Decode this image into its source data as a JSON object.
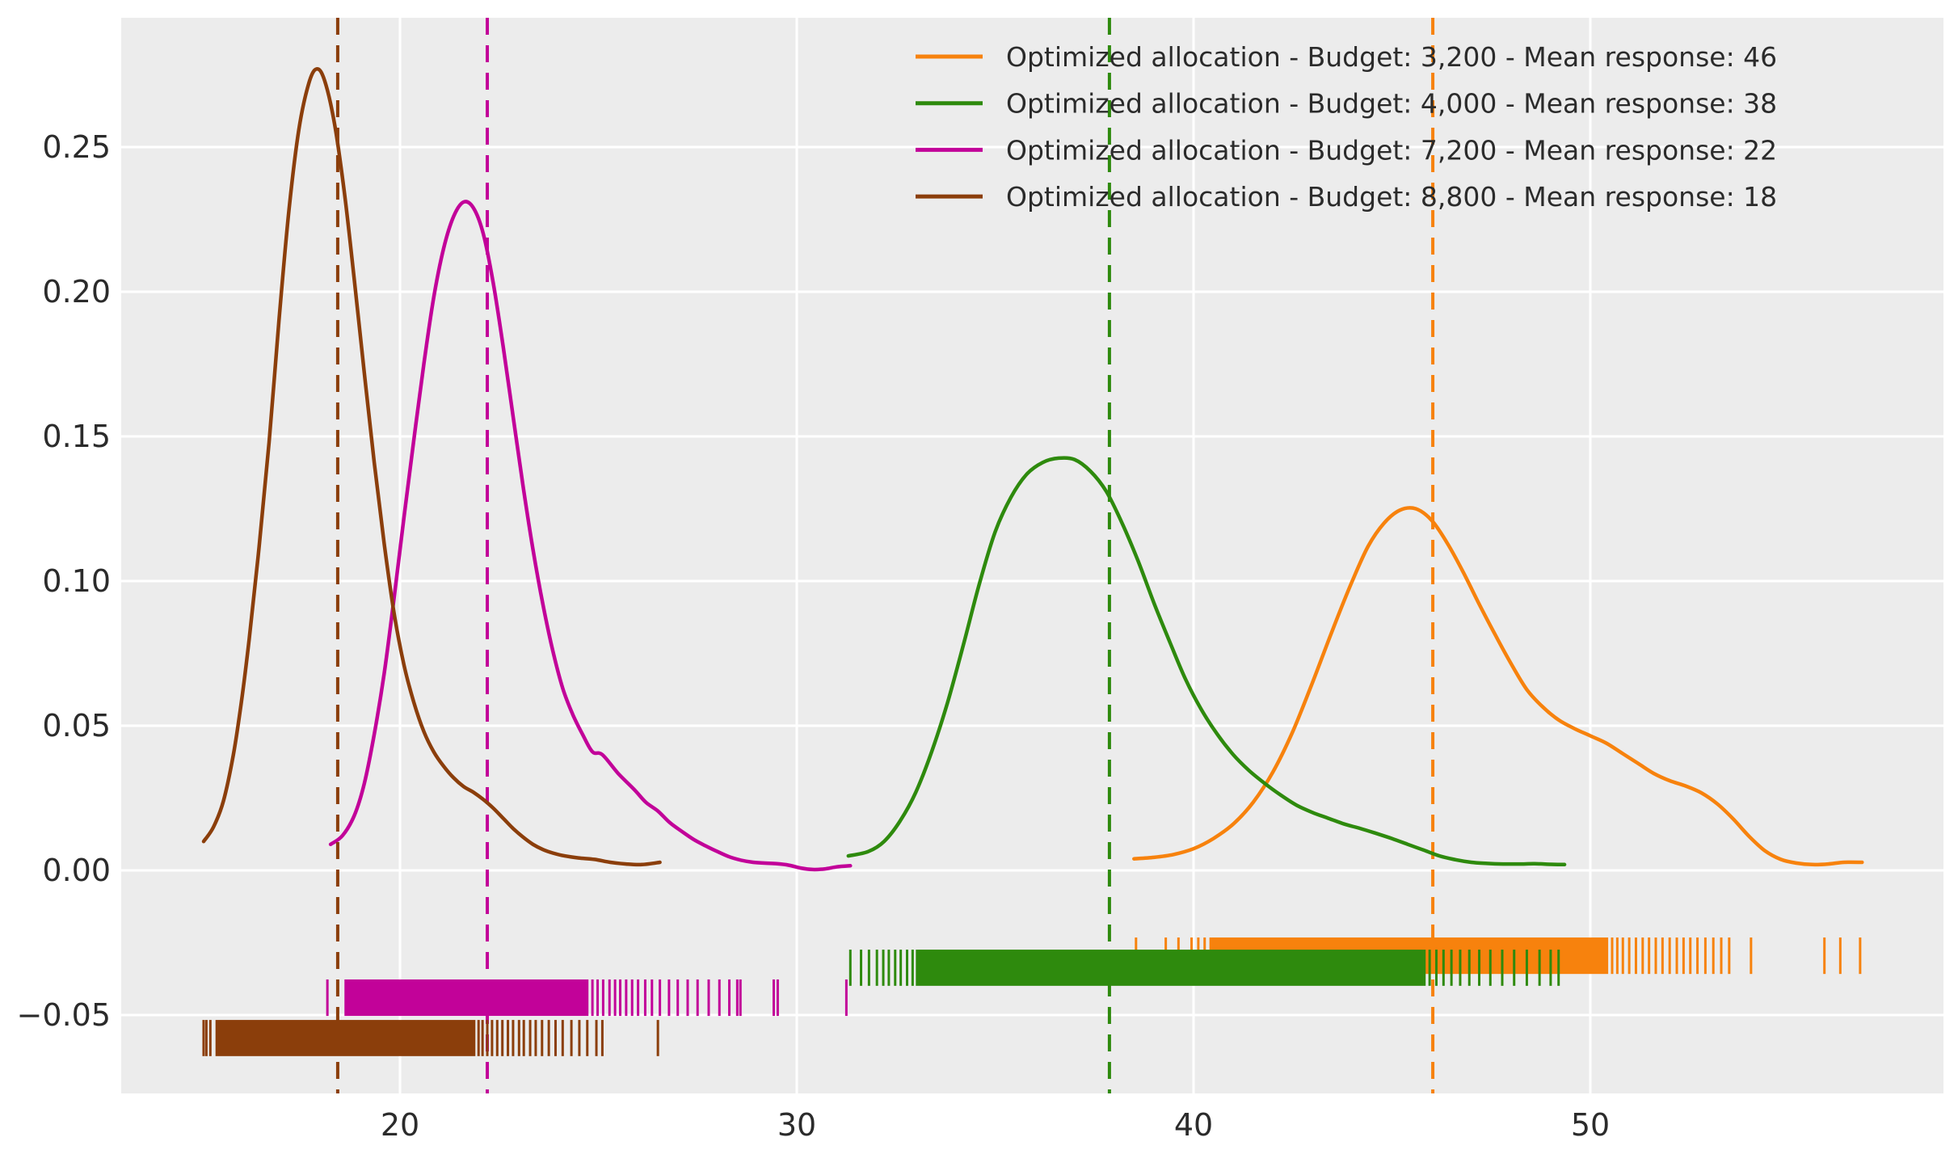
{
  "figure": {
    "background": "#ffffff",
    "plot_background": "#ececec",
    "grid_color": "#ffffff",
    "text_color": "#2b2b2b"
  },
  "axes": {
    "x": {
      "ticks": [
        20,
        30,
        40,
        50
      ],
      "tick_labels": [
        "20",
        "30",
        "40",
        "50"
      ],
      "range": [
        12.97,
        58.9
      ]
    },
    "y": {
      "ticks": [
        0.25,
        0.2,
        0.15,
        0.1,
        0.05,
        0.0,
        -0.05
      ],
      "tick_labels": [
        "0.25",
        "0.20",
        "0.15",
        "0.10",
        "0.05",
        "0.00",
        "−0.05"
      ],
      "range": [
        -0.077,
        0.295
      ]
    }
  },
  "legend": {
    "position": "upper-right",
    "entries": [
      {
        "label": "Optimized allocation - Budget: 3,200 - Mean response: 46",
        "color": "#f7820d"
      },
      {
        "label": "Optimized allocation - Budget: 4,000 - Mean response: 38",
        "color": "#2e8a0d"
      },
      {
        "label": "Optimized allocation - Budget: 7,200 - Mean response: 22",
        "color": "#c20299"
      },
      {
        "label": "Optimized allocation - Budget: 8,800 - Mean response: 18",
        "color": "#8b3e0b"
      }
    ]
  },
  "chart_data": {
    "type": "kde",
    "title": "",
    "xlabel": "",
    "ylabel": "",
    "grid": true,
    "series": [
      {
        "name": "budget-3200",
        "budget": "3,200",
        "mean_response": 46,
        "color": "#f7820d",
        "mean_line_x": 46.03,
        "curve": [
          [
            38.5,
            0.004
          ],
          [
            39.0,
            0.0045
          ],
          [
            39.5,
            0.0055
          ],
          [
            40.0,
            0.0075
          ],
          [
            40.5,
            0.011
          ],
          [
            41.0,
            0.016
          ],
          [
            41.5,
            0.0235
          ],
          [
            42.0,
            0.034
          ],
          [
            42.5,
            0.048
          ],
          [
            43.0,
            0.065
          ],
          [
            43.5,
            0.083
          ],
          [
            44.0,
            0.1
          ],
          [
            44.4,
            0.112
          ],
          [
            44.8,
            0.12
          ],
          [
            45.2,
            0.1245
          ],
          [
            45.6,
            0.125
          ],
          [
            46.0,
            0.121
          ],
          [
            46.4,
            0.113
          ],
          [
            46.8,
            0.103
          ],
          [
            47.2,
            0.092
          ],
          [
            47.6,
            0.0815
          ],
          [
            48.0,
            0.0715
          ],
          [
            48.4,
            0.0625
          ],
          [
            48.8,
            0.0565
          ],
          [
            49.2,
            0.052
          ],
          [
            49.6,
            0.049
          ],
          [
            50.0,
            0.0465
          ],
          [
            50.4,
            0.044
          ],
          [
            50.8,
            0.0405
          ],
          [
            51.2,
            0.037
          ],
          [
            51.6,
            0.0335
          ],
          [
            52.0,
            0.031
          ],
          [
            52.4,
            0.0292
          ],
          [
            52.8,
            0.0268
          ],
          [
            53.2,
            0.023
          ],
          [
            53.6,
            0.0178
          ],
          [
            54.0,
            0.0118
          ],
          [
            54.4,
            0.0068
          ],
          [
            54.8,
            0.0038
          ],
          [
            55.2,
            0.0025
          ],
          [
            55.6,
            0.002
          ],
          [
            56.0,
            0.0022
          ],
          [
            56.4,
            0.0028
          ],
          [
            56.85,
            0.0028
          ]
        ],
        "rug": {
          "v_top": -0.0232,
          "v_bottom": -0.0358,
          "band": [
            40.4,
            50.45
          ],
          "ticks": [
            38.55,
            39.3,
            39.62,
            39.95,
            40.12,
            40.28,
            50.55,
            50.68,
            50.82,
            50.98,
            51.15,
            51.32,
            51.48,
            51.65,
            51.82,
            52.0,
            52.18,
            52.35,
            52.52,
            52.7,
            52.9,
            53.1,
            53.3,
            53.5,
            54.05,
            55.9,
            56.3,
            56.8
          ]
        }
      },
      {
        "name": "budget-4000",
        "budget": "4,000",
        "mean_response": 38,
        "color": "#2e8a0d",
        "mean_line_x": 37.88,
        "curve": [
          [
            31.3,
            0.005
          ],
          [
            31.8,
            0.0065
          ],
          [
            32.2,
            0.01
          ],
          [
            32.6,
            0.017
          ],
          [
            33.0,
            0.027
          ],
          [
            33.4,
            0.041
          ],
          [
            33.8,
            0.058
          ],
          [
            34.2,
            0.078
          ],
          [
            34.6,
            0.099
          ],
          [
            35.0,
            0.117
          ],
          [
            35.4,
            0.129
          ],
          [
            35.8,
            0.137
          ],
          [
            36.2,
            0.141
          ],
          [
            36.6,
            0.1425
          ],
          [
            37.0,
            0.142
          ],
          [
            37.4,
            0.138
          ],
          [
            37.8,
            0.131
          ],
          [
            38.2,
            0.12
          ],
          [
            38.6,
            0.107
          ],
          [
            39.0,
            0.0925
          ],
          [
            39.4,
            0.079
          ],
          [
            39.8,
            0.066
          ],
          [
            40.2,
            0.0555
          ],
          [
            40.6,
            0.047
          ],
          [
            41.0,
            0.04
          ],
          [
            41.4,
            0.0345
          ],
          [
            41.8,
            0.03
          ],
          [
            42.2,
            0.026
          ],
          [
            42.6,
            0.0225
          ],
          [
            43.0,
            0.02
          ],
          [
            43.4,
            0.018
          ],
          [
            43.8,
            0.016
          ],
          [
            44.2,
            0.0145
          ],
          [
            44.6,
            0.0128
          ],
          [
            45.0,
            0.011
          ],
          [
            45.4,
            0.009
          ],
          [
            45.8,
            0.007
          ],
          [
            46.2,
            0.005
          ],
          [
            46.6,
            0.0037
          ],
          [
            47.0,
            0.0028
          ],
          [
            47.4,
            0.0024
          ],
          [
            47.8,
            0.0022
          ],
          [
            48.2,
            0.0022
          ],
          [
            48.6,
            0.0023
          ],
          [
            49.0,
            0.0021
          ],
          [
            49.35,
            0.002
          ]
        ],
        "rug": {
          "v_top": -0.0274,
          "v_bottom": -0.0399,
          "band": [
            33.0,
            45.85
          ],
          "ticks": [
            31.35,
            31.62,
            31.82,
            32.02,
            32.18,
            32.32,
            32.48,
            32.62,
            32.78,
            32.92,
            45.95,
            46.12,
            46.3,
            46.5,
            46.72,
            46.95,
            47.2,
            47.48,
            47.78,
            48.08,
            48.4,
            48.72,
            49.0,
            49.2
          ]
        }
      },
      {
        "name": "budget-7200",
        "budget": "7,200",
        "mean_response": 22,
        "color": "#c20299",
        "mean_line_x": 22.2,
        "curve": [
          [
            18.25,
            0.009
          ],
          [
            18.55,
            0.012
          ],
          [
            18.85,
            0.019
          ],
          [
            19.1,
            0.03
          ],
          [
            19.35,
            0.047
          ],
          [
            19.6,
            0.068
          ],
          [
            19.85,
            0.094
          ],
          [
            20.1,
            0.122
          ],
          [
            20.35,
            0.149
          ],
          [
            20.6,
            0.175
          ],
          [
            20.85,
            0.198
          ],
          [
            21.1,
            0.215
          ],
          [
            21.35,
            0.226
          ],
          [
            21.6,
            0.231
          ],
          [
            21.85,
            0.229
          ],
          [
            22.1,
            0.22
          ],
          [
            22.35,
            0.203
          ],
          [
            22.6,
            0.181
          ],
          [
            22.85,
            0.157
          ],
          [
            23.1,
            0.133
          ],
          [
            23.35,
            0.111
          ],
          [
            23.6,
            0.092
          ],
          [
            23.85,
            0.076
          ],
          [
            24.1,
            0.063
          ],
          [
            24.35,
            0.054
          ],
          [
            24.6,
            0.047
          ],
          [
            24.85,
            0.041
          ],
          [
            25.1,
            0.04
          ],
          [
            25.5,
            0.0335
          ],
          [
            25.9,
            0.028
          ],
          [
            26.2,
            0.0235
          ],
          [
            26.5,
            0.0205
          ],
          [
            26.8,
            0.0165
          ],
          [
            27.1,
            0.0135
          ],
          [
            27.4,
            0.0107
          ],
          [
            27.7,
            0.0085
          ],
          [
            28.0,
            0.0065
          ],
          [
            28.3,
            0.0047
          ],
          [
            28.6,
            0.0035
          ],
          [
            28.9,
            0.0028
          ],
          [
            29.2,
            0.0025
          ],
          [
            29.5,
            0.0023
          ],
          [
            29.8,
            0.0018
          ],
          [
            30.1,
            0.0008
          ],
          [
            30.4,
            0.0003
          ],
          [
            30.7,
            0.0005
          ],
          [
            31.0,
            0.0012
          ],
          [
            31.35,
            0.0016
          ]
        ],
        "rug": {
          "v_top": -0.0377,
          "v_bottom": -0.0503,
          "band": [
            18.6,
            24.75
          ],
          "ticks": [
            18.17,
            24.85,
            24.98,
            25.12,
            25.28,
            25.42,
            25.55,
            25.7,
            25.85,
            26.0,
            26.18,
            26.35,
            26.55,
            26.78,
            27.0,
            27.25,
            27.5,
            27.78,
            28.05,
            28.3,
            28.5,
            28.58,
            29.42,
            29.52,
            31.25
          ]
        }
      },
      {
        "name": "budget-8800",
        "budget": "8,800",
        "mean_response": 18,
        "color": "#8b3e0b",
        "mean_line_x": 18.43,
        "curve": [
          [
            15.05,
            0.01
          ],
          [
            15.3,
            0.015
          ],
          [
            15.55,
            0.024
          ],
          [
            15.8,
            0.04
          ],
          [
            16.0,
            0.058
          ],
          [
            16.2,
            0.08
          ],
          [
            16.45,
            0.112
          ],
          [
            16.7,
            0.148
          ],
          [
            16.95,
            0.19
          ],
          [
            17.2,
            0.228
          ],
          [
            17.45,
            0.256
          ],
          [
            17.7,
            0.272
          ],
          [
            17.9,
            0.277
          ],
          [
            18.1,
            0.273
          ],
          [
            18.35,
            0.258
          ],
          [
            18.6,
            0.234
          ],
          [
            18.85,
            0.204
          ],
          [
            19.1,
            0.172
          ],
          [
            19.35,
            0.141
          ],
          [
            19.6,
            0.113
          ],
          [
            19.85,
            0.089
          ],
          [
            20.1,
            0.071
          ],
          [
            20.35,
            0.058
          ],
          [
            20.6,
            0.048
          ],
          [
            20.85,
            0.041
          ],
          [
            21.1,
            0.036
          ],
          [
            21.35,
            0.032
          ],
          [
            21.6,
            0.029
          ],
          [
            21.85,
            0.027
          ],
          [
            22.1,
            0.0245
          ],
          [
            22.35,
            0.0215
          ],
          [
            22.6,
            0.018
          ],
          [
            22.85,
            0.0145
          ],
          [
            23.1,
            0.0115
          ],
          [
            23.35,
            0.009
          ],
          [
            23.6,
            0.0072
          ],
          [
            23.85,
            0.006
          ],
          [
            24.15,
            0.005
          ],
          [
            24.5,
            0.0043
          ],
          [
            24.9,
            0.0038
          ],
          [
            25.3,
            0.0028
          ],
          [
            25.7,
            0.0022
          ],
          [
            26.1,
            0.002
          ],
          [
            26.55,
            0.0028
          ]
        ],
        "rug": {
          "v_top": -0.0517,
          "v_bottom": -0.0642,
          "band": [
            15.35,
            21.9
          ],
          "ticks": [
            15.05,
            15.12,
            15.22,
            21.98,
            22.08,
            22.2,
            22.32,
            22.45,
            22.58,
            22.72,
            22.85,
            23.0,
            23.12,
            23.28,
            23.42,
            23.58,
            23.75,
            23.92,
            24.1,
            24.32,
            24.52,
            24.72,
            24.95,
            25.1,
            26.5
          ]
        }
      }
    ]
  }
}
